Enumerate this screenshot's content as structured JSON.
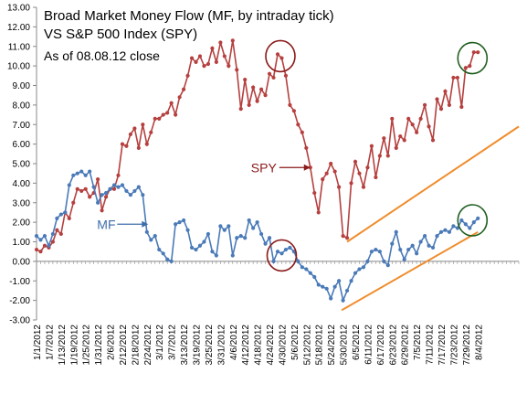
{
  "chart_data": {
    "type": "line",
    "title_lines": [
      "Broad Market Money Flow (MF, by intraday tick)",
      "VS S&P 500 Index (SPY)",
      "As of 08.08.12 close"
    ],
    "ylim": [
      -3.0,
      13.0
    ],
    "y_ticks": [
      "13.00",
      "12.00",
      "11.00",
      "10.00",
      "9.00",
      "8.00",
      "7.00",
      "6.00",
      "5.00",
      "4.00",
      "3.00",
      "2.00",
      "1.00",
      "0.00",
      "-1.00",
      "-2.00",
      "-3.00"
    ],
    "x_ticks": [
      "1/1/2012",
      "1/7/2012",
      "1/13/2012",
      "1/19/2012",
      "1/25/2012",
      "1/31/2012",
      "2/6/2012",
      "2/12/2012",
      "2/18/2012",
      "2/24/2012",
      "3/1/2012",
      "3/7/2012",
      "3/13/2012",
      "3/19/2012",
      "3/25/2012",
      "3/31/2012",
      "4/6/2012",
      "4/12/2012",
      "4/18/2012",
      "4/24/2012",
      "4/30/2012",
      "5/6/2012",
      "5/12/2012",
      "5/18/2012",
      "5/24/2012",
      "5/30/2012",
      "6/5/2012",
      "6/11/2012",
      "6/17/2012",
      "6/23/2012",
      "6/29/2012",
      "7/5/2012",
      "7/11/2012",
      "7/17/2012",
      "7/23/2012",
      "7/29/2012",
      "8/4/2012"
    ],
    "series": [
      {
        "name": "SPY",
        "color": "#b5403f",
        "points": [
          [
            0,
            0.6
          ],
          [
            1.5,
            0.5
          ],
          [
            3,
            0.8
          ],
          [
            4.5,
            0.7
          ],
          [
            6,
            1.0
          ],
          [
            7.5,
            1.6
          ],
          [
            9,
            1.4
          ],
          [
            10.5,
            2.5
          ],
          [
            12,
            2.2
          ],
          [
            13.5,
            3.0
          ],
          [
            15,
            3.7
          ],
          [
            16.5,
            3.6
          ],
          [
            18,
            3.7
          ],
          [
            19.5,
            3.3
          ],
          [
            21,
            3.5
          ],
          [
            22.5,
            4.2
          ],
          [
            24,
            2.6
          ],
          [
            25.5,
            3.3
          ],
          [
            27,
            3.7
          ],
          [
            28.5,
            3.7
          ],
          [
            30,
            4.4
          ],
          [
            31.5,
            6.0
          ],
          [
            33,
            5.9
          ],
          [
            34.5,
            6.5
          ],
          [
            36,
            6.8
          ],
          [
            37.5,
            5.8
          ],
          [
            39,
            7.0
          ],
          [
            40.5,
            6.0
          ],
          [
            42,
            6.6
          ],
          [
            43.5,
            7.3
          ],
          [
            45,
            7.3
          ],
          [
            46.5,
            7.5
          ],
          [
            48,
            7.6
          ],
          [
            49.5,
            8.1
          ],
          [
            51,
            7.5
          ],
          [
            52.5,
            8.4
          ],
          [
            54,
            8.8
          ],
          [
            55.5,
            9.5
          ],
          [
            57,
            10.4
          ],
          [
            58.5,
            10.2
          ],
          [
            60,
            10.5
          ],
          [
            61.5,
            10.0
          ],
          [
            63,
            10.1
          ],
          [
            64.5,
            10.9
          ],
          [
            66,
            10.2
          ],
          [
            67.5,
            11.2
          ],
          [
            69,
            10.5
          ],
          [
            70.5,
            10.0
          ],
          [
            72,
            11.3
          ],
          [
            73.5,
            9.8
          ],
          [
            75,
            7.8
          ],
          [
            76.5,
            9.3
          ],
          [
            78,
            8.0
          ],
          [
            79.5,
            8.9
          ],
          [
            81,
            8.2
          ],
          [
            82.5,
            8.8
          ],
          [
            84,
            8.5
          ],
          [
            85.5,
            9.6
          ],
          [
            87,
            9.4
          ],
          [
            88.5,
            10.6
          ],
          [
            90,
            10.4
          ],
          [
            91.5,
            9.5
          ],
          [
            93,
            8.0
          ],
          [
            94.5,
            7.7
          ],
          [
            96,
            7.0
          ],
          [
            97.5,
            6.6
          ],
          [
            99,
            5.8
          ],
          [
            100.5,
            4.8
          ],
          [
            102,
            3.5
          ],
          [
            103.5,
            2.5
          ],
          [
            105,
            4.2
          ],
          [
            106.5,
            4.5
          ],
          [
            108,
            5.0
          ],
          [
            109.5,
            4.6
          ],
          [
            111,
            3.8
          ],
          [
            112.5,
            1.3
          ],
          [
            114,
            1.2
          ],
          [
            115.5,
            4.0
          ],
          [
            117,
            5.1
          ],
          [
            118.5,
            4.5
          ],
          [
            120,
            3.8
          ],
          [
            121.5,
            4.8
          ],
          [
            123,
            5.9
          ],
          [
            124.5,
            4.3
          ],
          [
            126,
            5.4
          ],
          [
            127.5,
            6.3
          ],
          [
            129,
            5.4
          ],
          [
            130.5,
            7.3
          ],
          [
            132,
            5.8
          ],
          [
            133.5,
            6.4
          ],
          [
            135,
            6.2
          ],
          [
            136.5,
            7.3
          ],
          [
            138,
            7.0
          ],
          [
            139.5,
            6.6
          ],
          [
            141,
            7.3
          ],
          [
            142.5,
            8.0
          ],
          [
            144,
            6.9
          ],
          [
            145.5,
            6.2
          ],
          [
            147,
            8.3
          ],
          [
            148.5,
            7.8
          ],
          [
            150,
            8.7
          ],
          [
            151.5,
            8.0
          ],
          [
            153,
            9.4
          ],
          [
            154.5,
            9.4
          ],
          [
            156,
            7.9
          ],
          [
            157.5,
            9.9
          ],
          [
            159,
            10.0
          ],
          [
            160.5,
            10.7
          ],
          [
            162,
            10.7
          ]
        ]
      },
      {
        "name": "MF",
        "color": "#4a7ab8",
        "points": [
          [
            0,
            1.3
          ],
          [
            1.5,
            1.1
          ],
          [
            3,
            1.3
          ],
          [
            4.5,
            0.8
          ],
          [
            6,
            1.4
          ],
          [
            7.5,
            2.2
          ],
          [
            9,
            2.4
          ],
          [
            10.5,
            2.5
          ],
          [
            12,
            3.9
          ],
          [
            13.5,
            4.4
          ],
          [
            15,
            4.5
          ],
          [
            16.5,
            4.6
          ],
          [
            18,
            4.4
          ],
          [
            19.5,
            4.6
          ],
          [
            21,
            3.8
          ],
          [
            22.5,
            3.0
          ],
          [
            24,
            3.4
          ],
          [
            25.5,
            3.5
          ],
          [
            27,
            3.7
          ],
          [
            28.5,
            3.9
          ],
          [
            30,
            3.8
          ],
          [
            31.5,
            3.9
          ],
          [
            33,
            3.6
          ],
          [
            34.5,
            3.4
          ],
          [
            36,
            3.6
          ],
          [
            37.5,
            3.8
          ],
          [
            39,
            3.4
          ],
          [
            40.5,
            1.5
          ],
          [
            42,
            1.1
          ],
          [
            43.5,
            1.3
          ],
          [
            45,
            0.6
          ],
          [
            46.5,
            0.4
          ],
          [
            48,
            0.1
          ],
          [
            49.5,
            0.0
          ],
          [
            51,
            1.9
          ],
          [
            52.5,
            2.0
          ],
          [
            54,
            2.1
          ],
          [
            55.5,
            1.6
          ],
          [
            57,
            0.7
          ],
          [
            58.5,
            0.6
          ],
          [
            60,
            0.8
          ],
          [
            61.5,
            1.0
          ],
          [
            63,
            1.4
          ],
          [
            64.5,
            0.5
          ],
          [
            66,
            0.3
          ],
          [
            67.5,
            1.8
          ],
          [
            69,
            1.6
          ],
          [
            70.5,
            1.8
          ],
          [
            72,
            0.3
          ],
          [
            73.5,
            1.2
          ],
          [
            75,
            1.3
          ],
          [
            76.5,
            1.2
          ],
          [
            78,
            2.1
          ],
          [
            79.5,
            1.7
          ],
          [
            81,
            2.0
          ],
          [
            82.5,
            1.4
          ],
          [
            84,
            0.9
          ],
          [
            85.5,
            1.2
          ],
          [
            87,
            0.0
          ],
          [
            88.5,
            0.5
          ],
          [
            90,
            0.4
          ],
          [
            91.5,
            0.6
          ],
          [
            93,
            0.7
          ],
          [
            94.5,
            0.5
          ],
          [
            96,
            0.0
          ],
          [
            97.5,
            -0.3
          ],
          [
            99,
            -0.4
          ],
          [
            100.5,
            -0.6
          ],
          [
            102,
            -0.8
          ],
          [
            103.5,
            -1.2
          ],
          [
            105,
            -1.3
          ],
          [
            106.5,
            -1.4
          ],
          [
            108,
            -1.9
          ],
          [
            109.5,
            -1.3
          ],
          [
            111,
            -1.0
          ],
          [
            112.5,
            -2.0
          ],
          [
            114,
            -1.5
          ],
          [
            115.5,
            -1.0
          ],
          [
            117,
            -0.6
          ],
          [
            118.5,
            -0.4
          ],
          [
            120,
            -0.3
          ],
          [
            121.5,
            0.0
          ],
          [
            123,
            0.5
          ],
          [
            124.5,
            0.6
          ],
          [
            126,
            0.5
          ],
          [
            127.5,
            0.0
          ],
          [
            129,
            -0.2
          ],
          [
            130.5,
            0.9
          ],
          [
            132,
            1.5
          ],
          [
            133.5,
            0.6
          ],
          [
            135,
            0.1
          ],
          [
            136.5,
            0.6
          ],
          [
            138,
            0.8
          ],
          [
            139.5,
            0.4
          ],
          [
            141,
            1.0
          ],
          [
            142.5,
            1.3
          ],
          [
            144,
            0.8
          ],
          [
            145.5,
            0.7
          ],
          [
            147,
            1.3
          ],
          [
            148.5,
            1.5
          ],
          [
            150,
            1.6
          ],
          [
            151.5,
            1.5
          ],
          [
            153,
            1.8
          ],
          [
            154.5,
            1.7
          ],
          [
            156,
            2.1
          ],
          [
            157.5,
            1.9
          ],
          [
            159,
            1.7
          ],
          [
            160.5,
            2.0
          ],
          [
            162,
            2.2
          ]
        ]
      }
    ],
    "trendlines": [
      {
        "series": "SPY",
        "color": "#f08c2b",
        "from": [
          114,
          1.0
        ],
        "to": [
          177,
          6.9
        ]
      },
      {
        "series": "MF",
        "color": "#f08c2b",
        "from": [
          112,
          -2.5
        ],
        "to": [
          162,
          1.5
        ]
      }
    ],
    "annotations": [
      {
        "label": "SPY",
        "color": "#8b1a1a",
        "arrow_to": [
          100.5,
          4.8
        ]
      },
      {
        "label": "MF",
        "color": "#3d6eaa",
        "arrow_to": [
          41,
          1.9
        ]
      }
    ],
    "circles": [
      {
        "color": "#8b1a1a",
        "center": [
          89.5,
          10.5
        ]
      },
      {
        "color": "#8b1a1a",
        "center": [
          90,
          0.3
        ]
      },
      {
        "color": "#1f5e1f",
        "center": [
          160,
          10.4
        ]
      },
      {
        "color": "#1f5e1f",
        "center": [
          160,
          2.1
        ]
      }
    ],
    "grid": false
  }
}
